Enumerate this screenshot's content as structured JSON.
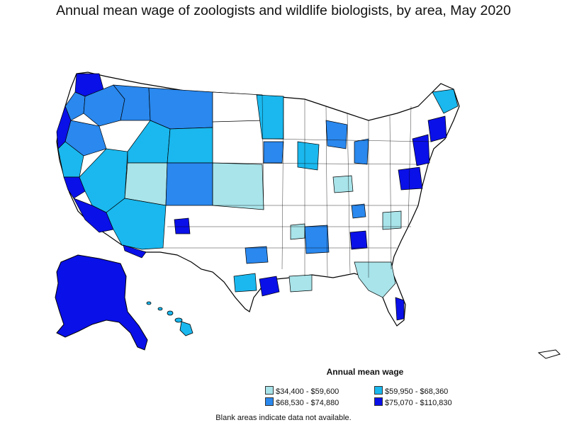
{
  "title": "Annual mean wage of zoologists and wildlife biologists, by area, May 2020",
  "legend": {
    "title": "Annual mean wage",
    "items": [
      {
        "label": "$34,400 - $59,600",
        "color": "#a8e4ea"
      },
      {
        "label": "$59,950 - $68,360",
        "color": "#1ab8ee"
      },
      {
        "label": "$68,530 - $74,880",
        "color": "#2a88ee"
      },
      {
        "label": "$75,070 - $110,830",
        "color": "#0a10e8"
      }
    ]
  },
  "note": "Blank areas indicate data not available.",
  "colors": {
    "nodata": "#ffffff",
    "border": "#000000"
  }
}
